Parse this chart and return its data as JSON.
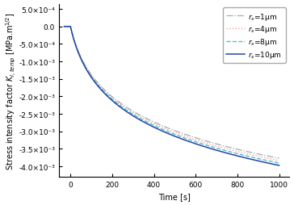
{
  "title": "",
  "xlabel": "Time [s]",
  "ylabel": "Stress intensity factor $K_{I,temp}$ [MPa.m$^{1/2}$]",
  "xlim": [
    -55,
    1050
  ],
  "ylim": [
    -0.0043,
    0.00065
  ],
  "yticks": [
    0.0005,
    0.0,
    -0.0005,
    -0.001,
    -0.0015,
    -0.002,
    -0.0025,
    -0.003,
    -0.0035,
    -0.004
  ],
  "xticks": [
    0,
    200,
    400,
    600,
    800,
    1000
  ],
  "series": [
    {
      "label": "$r_s$=1μm",
      "color": "#aaaaaa",
      "linestyle": "dashdot",
      "lw": 0.9,
      "r_idx": 0
    },
    {
      "label": "$r_s$=4μm",
      "color": "#f0a0a0",
      "linestyle": "dotted",
      "lw": 1.0,
      "r_idx": 1
    },
    {
      "label": "$r_s$=8μm",
      "color": "#50c0c0",
      "linestyle": "dashed",
      "lw": 1.0,
      "r_idx": 2
    },
    {
      "label": "$r_s$=10μm",
      "color": "#2244aa",
      "linestyle": "solid",
      "lw": 1.1,
      "r_idx": 3
    }
  ],
  "curve_a": -0.00122,
  "curve_b": 0.021,
  "spread_factor": 0.018,
  "background_color": "#ffffff",
  "legend_loc": "upper right",
  "legend_fontsize": 6.5,
  "tick_fontsize": 6.5,
  "label_fontsize": 7.0
}
